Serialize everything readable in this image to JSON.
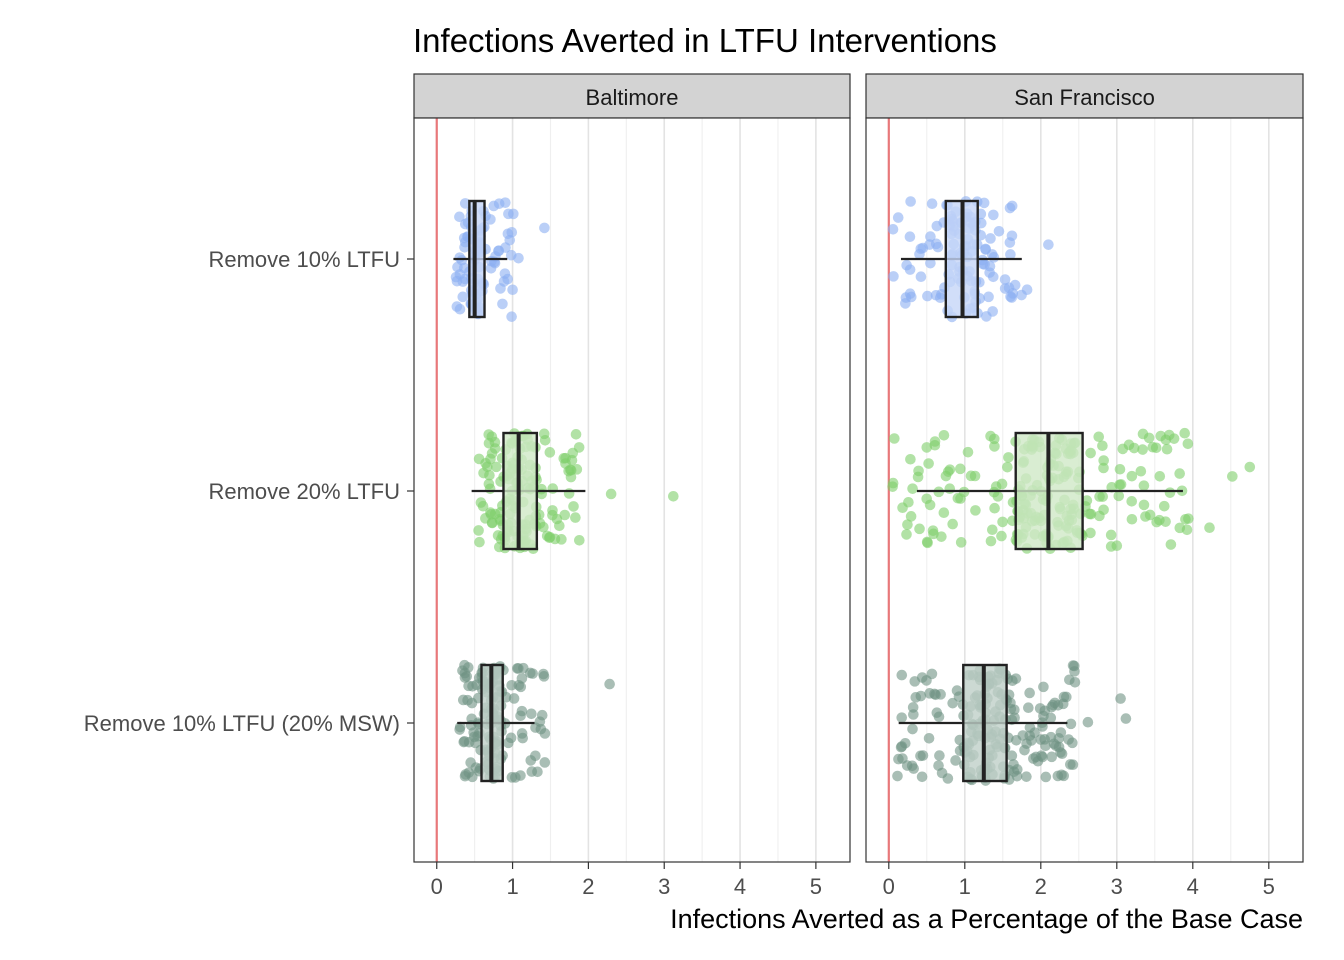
{
  "chart_data": {
    "type": "boxplot",
    "title": "Infections Averted in LTFU Interventions",
    "xlabel": "Infections Averted as a Percentage of the Base Case",
    "ylabel": "",
    "xlim": [
      -0.3,
      5.45
    ],
    "x_ticks": [
      0,
      1,
      2,
      3,
      4,
      5
    ],
    "reference_line_x": 0,
    "reference_line_color": "#e8787a",
    "grid": true,
    "legend": "none",
    "categories": [
      "Remove 10% LTFU",
      "Remove 20% LTFU",
      "Remove 10% LTFU (20% MSW)"
    ],
    "category_colors": {
      "Remove 10% LTFU": {
        "point": "#8caff2",
        "box": "#c6d6f7"
      },
      "Remove 20% LTFU": {
        "point": "#7fcf6a",
        "box": "#cfe9c7"
      },
      "Remove 10% LTFU (20% MSW)": {
        "point": "#6f9383",
        "box": "#bfcfc8"
      }
    },
    "panels": [
      {
        "name": "Baltimore",
        "boxes": [
          {
            "category": "Remove 10% LTFU",
            "whisker_low": 0.22,
            "q1": 0.43,
            "median": 0.5,
            "q3": 0.63,
            "whisker_high": 0.93,
            "outliers": [
              1.42
            ],
            "point_min": 0.25,
            "point_max": 1.08,
            "n_points": 95
          },
          {
            "category": "Remove 20% LTFU",
            "whisker_low": 0.46,
            "q1": 0.88,
            "median": 1.08,
            "q3": 1.32,
            "whisker_high": 1.96,
            "outliers": [
              2.3,
              3.12
            ],
            "point_min": 0.55,
            "point_max": 1.9,
            "n_points": 150
          },
          {
            "category": "Remove 10% LTFU (20% MSW)",
            "whisker_low": 0.27,
            "q1": 0.59,
            "median": 0.72,
            "q3": 0.87,
            "whisker_high": 1.29,
            "outliers": [
              2.28
            ],
            "point_min": 0.3,
            "point_max": 1.45,
            "n_points": 140
          }
        ]
      },
      {
        "name": "San Francisco",
        "boxes": [
          {
            "category": "Remove 10% LTFU",
            "whisker_low": 0.16,
            "q1": 0.75,
            "median": 0.97,
            "q3": 1.17,
            "whisker_high": 1.75,
            "outliers": [
              1.6,
              1.82,
              2.1
            ],
            "point_min": 0.05,
            "point_max": 1.75,
            "n_points": 120
          },
          {
            "category": "Remove 20% LTFU",
            "whisker_low": 0.37,
            "q1": 1.67,
            "median": 2.1,
            "q3": 2.55,
            "whisker_high": 3.87,
            "outliers": [
              4.22,
              4.52,
              4.75
            ],
            "point_min": 0.05,
            "point_max": 3.95,
            "n_points": 230
          },
          {
            "category": "Remove 10% LTFU (20% MSW)",
            "whisker_low": 0.13,
            "q1": 0.98,
            "median": 1.25,
            "q3": 1.55,
            "whisker_high": 2.35,
            "outliers": [
              2.62,
              3.05,
              3.12
            ],
            "point_min": 0.1,
            "point_max": 2.45,
            "n_points": 200
          }
        ]
      }
    ]
  }
}
